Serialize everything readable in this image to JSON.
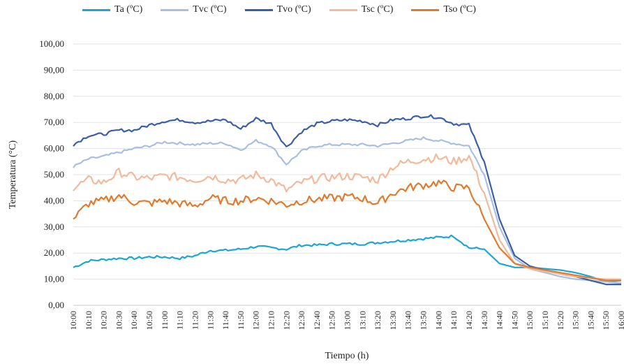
{
  "chart_data": {
    "type": "line",
    "xlabel": "Tiempo (h)",
    "ylabel": "Temperatura (°C)",
    "ylim": [
      0,
      100
    ],
    "y_ticks": [
      "0,00",
      "10,00",
      "20,00",
      "30,00",
      "40,00",
      "50,00",
      "60,00",
      "70,00",
      "80,00",
      "90,00",
      "100,00"
    ],
    "grid": "horizontal",
    "legend_position": "top",
    "x_ticks": [
      "10:00",
      "10:10",
      "10:20",
      "10:30",
      "10:40",
      "10:50",
      "11:00",
      "11:10",
      "11:20",
      "11:30",
      "11:40",
      "11:50",
      "12:00",
      "12:10",
      "12:20",
      "12:30",
      "12:40",
      "12:50",
      "13:00",
      "13:10",
      "13:20",
      "13:30",
      "13:40",
      "13:50",
      "14:00",
      "14:10",
      "14:20",
      "14:30",
      "14:40",
      "14:50",
      "15:00",
      "15:10",
      "15:20",
      "15:30",
      "15:40",
      "15:50",
      "16:00"
    ],
    "series": [
      {
        "name": "Ta (ºC)",
        "color": "#1aa7d8",
        "values": [
          14.5,
          17,
          17.5,
          18,
          18,
          18.5,
          18.5,
          18,
          19,
          21,
          21,
          21.5,
          22.5,
          22,
          21.5,
          23,
          23,
          23.5,
          23.5,
          23.5,
          24,
          24.5,
          25,
          25.5,
          26,
          26.5,
          22,
          21.5,
          16,
          14.5,
          14.5,
          14,
          13.5,
          12.5,
          11,
          9,
          9.5
        ]
      },
      {
        "name": "Tvc (ºC)",
        "color": "#a9bfe0",
        "values": [
          53,
          56,
          57,
          58.5,
          60,
          61,
          62.5,
          62,
          61.5,
          62,
          62,
          59.5,
          63,
          61,
          54,
          59,
          61,
          61.5,
          61.5,
          61.5,
          61,
          62,
          63,
          64,
          63,
          62,
          61,
          50,
          30,
          18,
          14,
          12.5,
          11,
          10,
          9.5,
          9,
          8.5
        ]
      },
      {
        "name": "Tvo (ºC)",
        "color": "#3a5ea9",
        "values": [
          61.5,
          65,
          65.5,
          67,
          67,
          69,
          70.5,
          71,
          70,
          70.5,
          71,
          67.5,
          71.5,
          69.5,
          60.5,
          66.5,
          69.5,
          70.5,
          71,
          70.5,
          69,
          71,
          71.5,
          72.5,
          72,
          69.5,
          69,
          55,
          33,
          19,
          15,
          13.5,
          12,
          11,
          9.5,
          8,
          8
        ]
      },
      {
        "name": "Tsc (ºC)",
        "color": "#f2b99b",
        "values": [
          45,
          48,
          47,
          51,
          49,
          48.5,
          49.5,
          49,
          48,
          49.5,
          48,
          48,
          50,
          48,
          44,
          47,
          48.5,
          49,
          49.5,
          49,
          48,
          53,
          55,
          56,
          56.5,
          55,
          57,
          43,
          25,
          16,
          14,
          13,
          12,
          11,
          10.5,
          10,
          10
        ]
      },
      {
        "name": "Tso (ºC)",
        "color": "#e07b2e",
        "values": [
          33,
          39,
          40,
          42,
          39.5,
          39,
          40,
          39,
          38,
          41,
          40,
          40,
          41,
          40,
          38.5,
          40,
          40.5,
          41,
          41.5,
          41,
          39,
          43,
          45,
          46,
          47,
          45,
          45,
          33,
          22,
          16,
          14.5,
          13.5,
          12.5,
          11.5,
          10.5,
          9.5,
          9.5
        ]
      }
    ]
  }
}
